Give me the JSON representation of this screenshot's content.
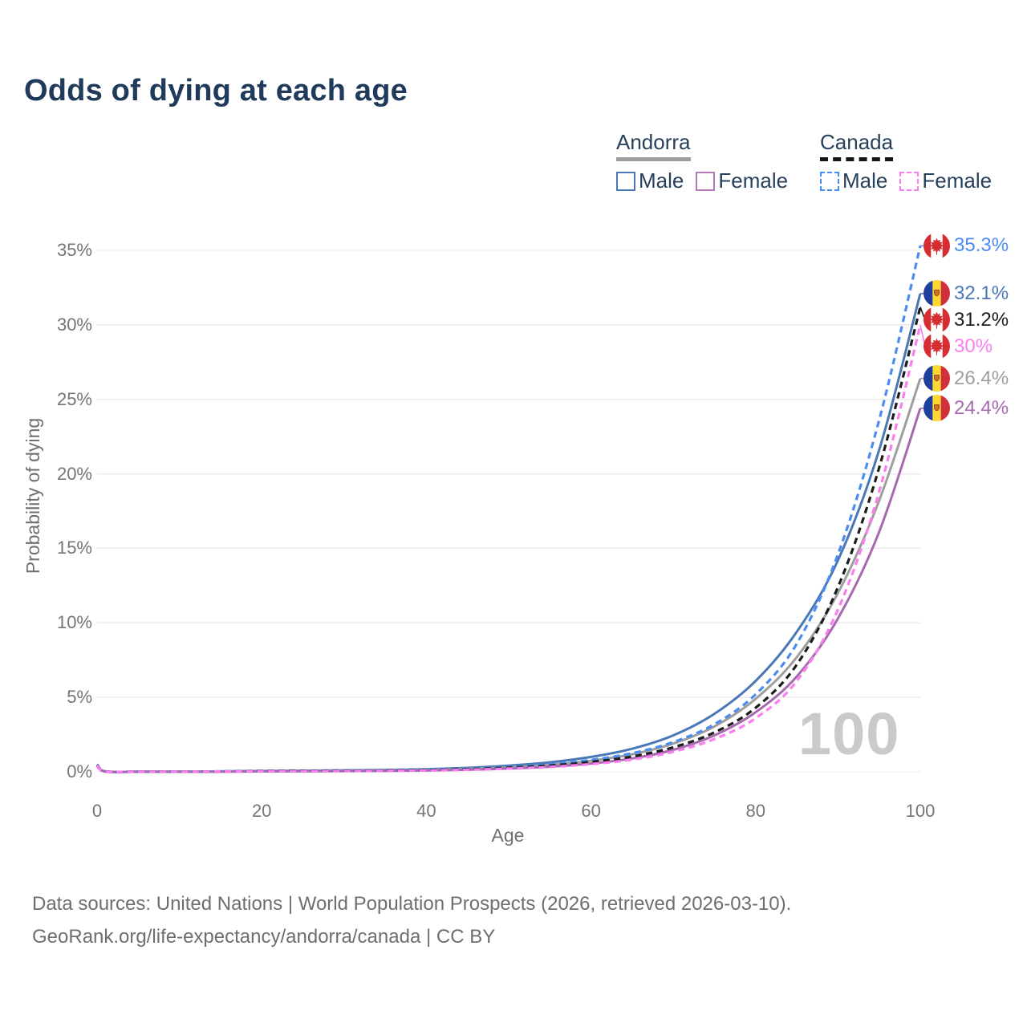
{
  "title": "Odds of dying at each age",
  "watermark": "100",
  "legend": {
    "groups": [
      {
        "label": "Andorra",
        "line_style": "solid",
        "underline_color": "#9e9e9e",
        "items": [
          {
            "label": "Male",
            "color": "#4a77b5",
            "style": "solid"
          },
          {
            "label": "Female",
            "color": "#b47ab8",
            "style": "solid"
          }
        ]
      },
      {
        "label": "Canada",
        "line_style": "dashed",
        "underline_color": "#161616",
        "items": [
          {
            "label": "Male",
            "color": "#4a8cf0",
            "style": "dashed"
          },
          {
            "label": "Female",
            "color": "#fb7df0",
            "style": "dashed"
          }
        ]
      }
    ]
  },
  "chart_data": {
    "type": "line",
    "title": "Odds of dying at each age",
    "xlabel": "Age",
    "ylabel": "Probability of dying",
    "xlim": [
      0,
      100
    ],
    "ylim": [
      0,
      35
    ],
    "x_ticks": [
      0,
      20,
      40,
      60,
      80,
      100
    ],
    "y_ticks": [
      "0%",
      "5%",
      "10%",
      "15%",
      "20%",
      "25%",
      "30%",
      "35%"
    ],
    "grid": "horizontal",
    "legend_position": "top-right",
    "ages": [
      0,
      1,
      5,
      10,
      15,
      20,
      25,
      30,
      35,
      40,
      45,
      50,
      55,
      60,
      65,
      70,
      75,
      80,
      85,
      90,
      95,
      100
    ],
    "series": [
      {
        "name": "Canada Male",
        "country": "Canada",
        "group": "Male",
        "flag": "canada",
        "color": "#4a8cf0",
        "dash": "dashed",
        "end_label": "35.3%",
        "end_value": 35.3,
        "values": [
          0.5,
          0.03,
          0.01,
          0.01,
          0.03,
          0.06,
          0.07,
          0.09,
          0.11,
          0.15,
          0.22,
          0.33,
          0.5,
          0.8,
          1.25,
          2.0,
          3.2,
          5.2,
          8.6,
          14.6,
          23.6,
          35.3
        ]
      },
      {
        "name": "Andorra Male",
        "country": "Andorra",
        "group": "Male",
        "flag": "andorra",
        "color": "#4a77b5",
        "dash": "solid",
        "end_label": "32.1%",
        "end_value": 32.1,
        "values": [
          0.45,
          0.03,
          0.01,
          0.01,
          0.03,
          0.06,
          0.08,
          0.1,
          0.13,
          0.18,
          0.27,
          0.42,
          0.64,
          1.0,
          1.55,
          2.45,
          3.9,
          6.1,
          9.4,
          14.2,
          21.6,
          32.1
        ]
      },
      {
        "name": "Canada Both sexes",
        "country": "Canada",
        "group": "Both",
        "flag": "canada",
        "color": "#1c1c1c",
        "dash": "dashed",
        "end_label": "31.2%",
        "end_value": 31.2,
        "values": [
          0.45,
          0.03,
          0.01,
          0.01,
          0.02,
          0.05,
          0.06,
          0.07,
          0.09,
          0.12,
          0.18,
          0.28,
          0.42,
          0.66,
          1.03,
          1.65,
          2.65,
          4.3,
          7.2,
          12.4,
          20.4,
          31.2
        ]
      },
      {
        "name": "Canada Female",
        "country": "Canada",
        "group": "Female",
        "flag": "canada",
        "color": "#fb7df0",
        "dash": "dashed",
        "end_label": "30%",
        "end_value": 30.0,
        "values": [
          0.42,
          0.02,
          0.01,
          0.01,
          0.02,
          0.03,
          0.04,
          0.05,
          0.07,
          0.09,
          0.14,
          0.22,
          0.33,
          0.52,
          0.82,
          1.35,
          2.2,
          3.6,
          6.1,
          10.9,
          18.8,
          30.0
        ]
      },
      {
        "name": "Andorra Both sexes",
        "country": "Andorra",
        "group": "Both",
        "flag": "andorra",
        "color": "#9e9e9e",
        "dash": "solid",
        "end_label": "26.4%",
        "end_value": 26.4,
        "values": [
          0.4,
          0.02,
          0.01,
          0.01,
          0.02,
          0.04,
          0.06,
          0.07,
          0.09,
          0.13,
          0.2,
          0.31,
          0.48,
          0.75,
          1.18,
          1.9,
          3.05,
          4.9,
          7.7,
          12.0,
          18.2,
          26.4
        ]
      },
      {
        "name": "Andorra Female",
        "country": "Andorra",
        "group": "Female",
        "flag": "andorra",
        "color": "#a569ad",
        "dash": "solid",
        "end_label": "24.4%",
        "end_value": 24.4,
        "values": [
          0.38,
          0.02,
          0.01,
          0.01,
          0.01,
          0.03,
          0.04,
          0.05,
          0.06,
          0.09,
          0.14,
          0.22,
          0.35,
          0.56,
          0.9,
          1.48,
          2.45,
          4.0,
          6.4,
          10.3,
          16.1,
          24.4
        ]
      }
    ]
  },
  "footer": {
    "line1": "Data sources: United Nations | World Population Prospects (2026, retrieved 2026-03-10).",
    "line2": "GeoRank.org/life-expectancy/andorra/canada | CC BY"
  }
}
